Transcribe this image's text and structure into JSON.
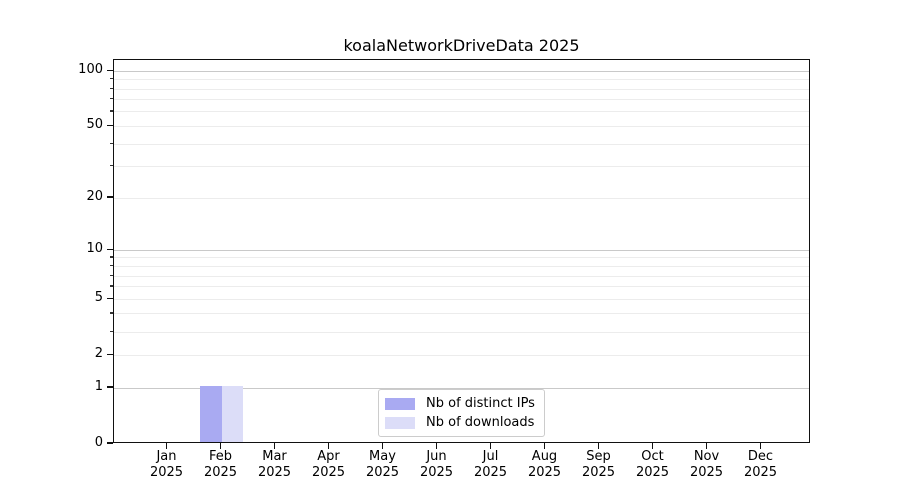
{
  "chart_data": {
    "type": "bar",
    "title": "koalaNetworkDriveData 2025",
    "categories": [
      "Jan 2025",
      "Feb 2025",
      "Mar 2025",
      "Apr 2025",
      "May 2025",
      "Jun 2025",
      "Jul 2025",
      "Aug 2025",
      "Sep 2025",
      "Oct 2025",
      "Nov 2025",
      "Dec 2025"
    ],
    "series": [
      {
        "name": "Nb of distinct IPs",
        "color": "#a9aaf2",
        "values": [
          0,
          1,
          0,
          0,
          0,
          0,
          0,
          0,
          0,
          0,
          0,
          0
        ]
      },
      {
        "name": "Nb of downloads",
        "color": "#dcddf8",
        "values": [
          0,
          1,
          0,
          0,
          0,
          0,
          0,
          0,
          0,
          0,
          0,
          0
        ]
      }
    ],
    "xlabel": "",
    "ylabel": "",
    "y_scale": "log1p",
    "ylim": [
      0,
      115
    ],
    "y_labeled_ticks": [
      0,
      1,
      2,
      5,
      10,
      20,
      50,
      100
    ],
    "y_major_gridlines": [
      1,
      10,
      100
    ],
    "y_minor_gridlines": [
      2,
      3,
      4,
      5,
      6,
      7,
      8,
      9,
      20,
      30,
      40,
      50,
      60,
      70,
      80,
      90
    ],
    "grid": "on",
    "legend_position": "lower center",
    "colors": {
      "axis": "#111111",
      "major_grid": "#c9c9c9",
      "minor_grid": "#ececec",
      "background": "#ffffff",
      "legend_border": "#cccccc"
    }
  }
}
